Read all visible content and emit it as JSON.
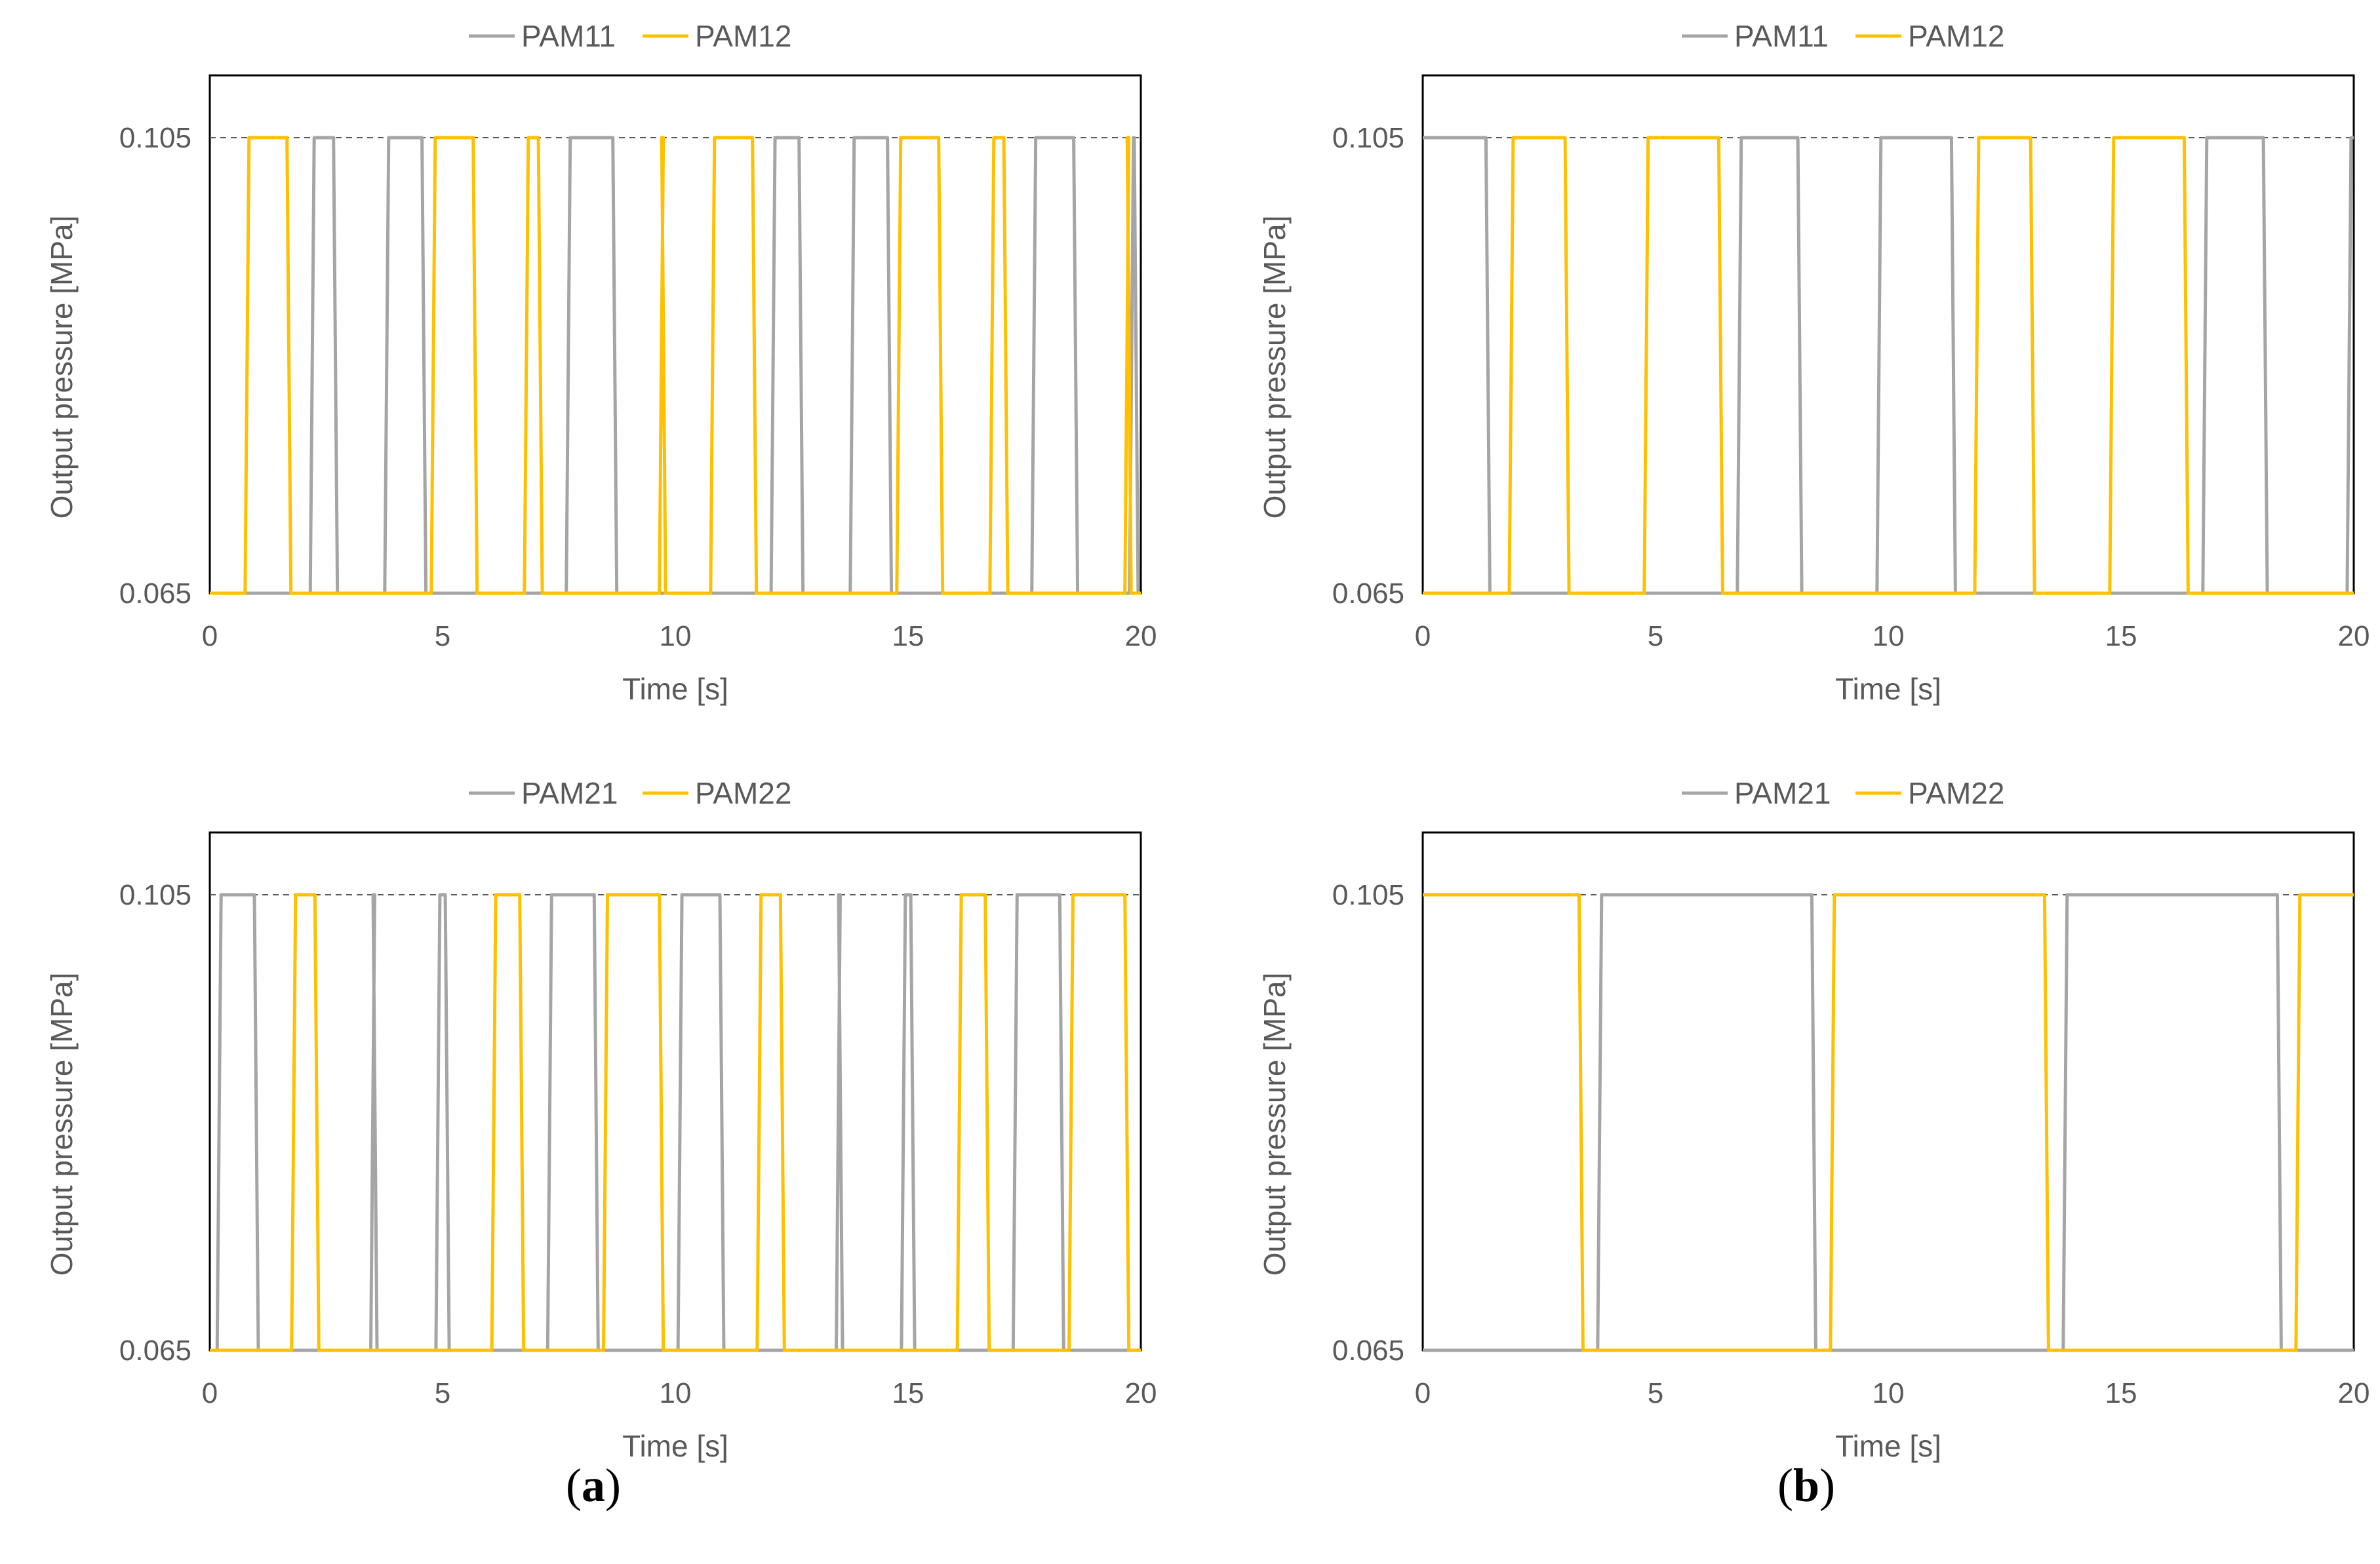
{
  "colors": {
    "gray": "#a5a5a5",
    "yellow": "#ffc000",
    "frame": "#000000",
    "text": "#595959",
    "ref_line": "#595959"
  },
  "captions": [
    {
      "open": "(",
      "letter": "a",
      "close": ")"
    },
    {
      "open": "(",
      "letter": "b",
      "close": ")"
    }
  ],
  "chart_data": [
    {
      "type": "line",
      "panel": "a-top",
      "xlabel": "Time [s]",
      "ylabel": "Output pressure [MPa]",
      "xlim": [
        0,
        20
      ],
      "ylim": [
        0.065,
        0.105
      ],
      "xticks": [
        "0",
        "5",
        "10",
        "15",
        "20"
      ],
      "yticks": [
        "0.065",
        "0.105"
      ],
      "reference_line": 0.105,
      "legend": [
        "PAM11",
        "PAM12"
      ],
      "series": [
        {
          "name": "PAM11",
          "color": "gray",
          "intervals": [
            [
              2.2,
              2.7
            ],
            [
              3.8,
              4.6
            ],
            [
              7.7,
              8.7
            ],
            [
              12.1,
              12.7
            ],
            [
              13.8,
              14.6
            ],
            [
              17.7,
              18.6
            ],
            [
              19.8,
              19.9
            ]
          ]
        },
        {
          "name": "PAM12",
          "color": "yellow",
          "intervals": [
            [
              0.8,
              1.7
            ],
            [
              4.8,
              5.7
            ],
            [
              6.8,
              7.1
            ],
            [
              9.7,
              9.75
            ],
            [
              10.8,
              11.7
            ],
            [
              14.8,
              15.7
            ],
            [
              16.8,
              17.1
            ],
            [
              19.7,
              19.75
            ]
          ]
        }
      ]
    },
    {
      "type": "line",
      "panel": "b-top",
      "xlabel": "Time [s]",
      "ylabel": "Output pressure [MPa]",
      "xlim": [
        0,
        20
      ],
      "ylim": [
        0.065,
        0.105
      ],
      "xticks": [
        "0",
        "5",
        "10",
        "15",
        "20"
      ],
      "yticks": [
        "0.065",
        "0.105"
      ],
      "reference_line": 0.105,
      "legend": [
        "PAM11",
        "PAM12"
      ],
      "series": [
        {
          "name": "PAM11",
          "color": "gray",
          "intervals": [
            [
              0,
              1.4
            ],
            [
              6.8,
              8.1
            ],
            [
              9.8,
              11.4
            ],
            [
              16.8,
              18.1
            ],
            [
              19.9,
              20
            ]
          ]
        },
        {
          "name": "PAM12",
          "color": "yellow",
          "intervals": [
            [
              1.9,
              3.1
            ],
            [
              4.8,
              6.4
            ],
            [
              11.9,
              13.1
            ],
            [
              14.8,
              16.4
            ]
          ]
        }
      ]
    },
    {
      "type": "line",
      "panel": "a-bottom",
      "xlabel": "Time [s]",
      "ylabel": "Output pressure [MPa]",
      "xlim": [
        0,
        20
      ],
      "ylim": [
        0.065,
        0.105
      ],
      "xticks": [
        "0",
        "5",
        "10",
        "15",
        "20"
      ],
      "yticks": [
        "0.065",
        "0.105"
      ],
      "reference_line": 0.105,
      "legend": [
        "PAM21",
        "PAM22"
      ],
      "series": [
        {
          "name": "PAM21",
          "color": "gray",
          "intervals": [
            [
              0.2,
              1.0
            ],
            [
              3.5,
              3.55
            ],
            [
              4.9,
              5.1
            ],
            [
              7.3,
              8.3
            ],
            [
              10.1,
              11.0
            ],
            [
              13.5,
              13.55
            ],
            [
              14.9,
              15.1
            ],
            [
              17.3,
              18.3
            ]
          ]
        },
        {
          "name": "PAM22",
          "color": "yellow",
          "intervals": [
            [
              1.8,
              2.3
            ],
            [
              6.1,
              6.7
            ],
            [
              8.5,
              9.7
            ],
            [
              11.8,
              12.3
            ],
            [
              16.1,
              16.7
            ],
            [
              18.5,
              19.7
            ]
          ]
        }
      ]
    },
    {
      "type": "line",
      "panel": "b-bottom",
      "xlabel": "Time [s]",
      "ylabel": "Output pressure [MPa]",
      "xlim": [
        0,
        20
      ],
      "ylim": [
        0.065,
        0.105
      ],
      "xticks": [
        "0",
        "5",
        "10",
        "15",
        "20"
      ],
      "yticks": [
        "0.065",
        "0.105"
      ],
      "reference_line": 0.105,
      "legend": [
        "PAM21",
        "PAM22"
      ],
      "series": [
        {
          "name": "PAM21",
          "color": "gray",
          "intervals": [
            [
              3.8,
              8.4
            ],
            [
              13.8,
              18.4
            ]
          ]
        },
        {
          "name": "PAM22",
          "color": "yellow",
          "intervals": [
            [
              0,
              3.4
            ],
            [
              8.8,
              13.4
            ],
            [
              18.8,
              20
            ]
          ]
        }
      ]
    }
  ]
}
